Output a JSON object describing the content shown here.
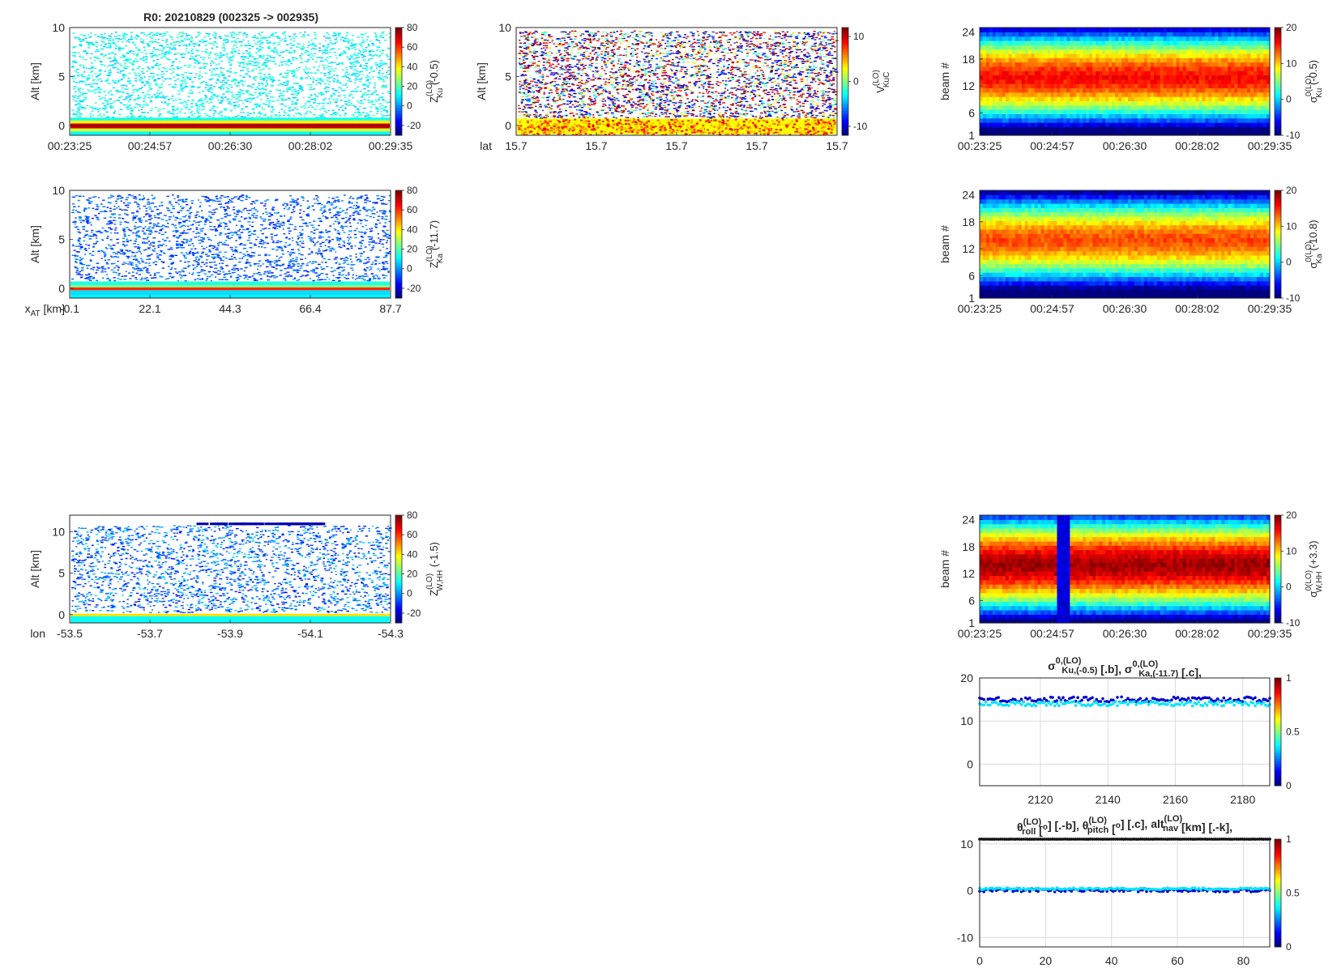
{
  "figure": {
    "title": "R0:  20210829 (002325 -> 002935)"
  },
  "chart_data": [
    {
      "id": "zku",
      "type": "heatmap",
      "ylabel": "Alt [km]",
      "ylim": [
        -1,
        10
      ],
      "yticks": [
        "0",
        "5",
        "10"
      ],
      "xticks": [
        "00:23:25",
        "00:24:57",
        "00:26:30",
        "00:28:02",
        "00:29:35"
      ],
      "colorbar": {
        "ticks": [
          "-20",
          "0",
          "20",
          "40",
          "60",
          "80"
        ],
        "range": [
          -30,
          80
        ],
        "label_main": "Z",
        "label_sup": "(LO)",
        "label_sub": "Ku",
        "label_suffix": " (-0.5)"
      },
      "content": "sparse echoes ~10-20 dBZ, strong surface return ~60-80 dBZ near 0 km"
    },
    {
      "id": "vkuc",
      "type": "heatmap",
      "ylabel": "Alt [km]",
      "ylim": [
        -1,
        10
      ],
      "yticks": [
        "0",
        "5",
        "10"
      ],
      "xaxis_prefix": "lat",
      "xticks": [
        "15.7",
        "15.7",
        "15.7",
        "15.7",
        "15.7"
      ],
      "colorbar": {
        "ticks": [
          "-10",
          "0",
          "10"
        ],
        "range": [
          -12,
          12
        ],
        "label_main": "V",
        "label_sup": "(LO)",
        "label_sub": "KuC",
        "label_suffix": ""
      },
      "content": "noisy velocity field from -12 to 12 m/s, surface near 0 km"
    },
    {
      "id": "sku",
      "type": "heatmap",
      "ylabel": "beam #",
      "ylim": [
        1,
        25
      ],
      "yticks": [
        "1",
        "6",
        "12",
        "18",
        "24"
      ],
      "xticks": [
        "00:23:25",
        "00:24:57",
        "00:26:30",
        "00:28:02",
        "00:29:35"
      ],
      "colorbar": {
        "ticks": [
          "-10",
          "0",
          "10",
          "20"
        ],
        "range": [
          -10,
          20
        ],
        "label_main": "σ",
        "label_sup": "0(LO)",
        "label_sub": "Ku",
        "label_suffix": " (-0.5)"
      },
      "content": "peak ~15 dB at nadir beams 12-14, falling to -10 dB at outer beams"
    },
    {
      "id": "zka",
      "type": "heatmap",
      "ylabel": "Alt [km]",
      "ylim": [
        -1,
        10
      ],
      "yticks": [
        "0",
        "5",
        "10"
      ],
      "xaxis_prefix": "x",
      "xaxis_prefix_sub": "AT",
      "xaxis_prefix_suffix": " [km]",
      "xticks": [
        "-0.1",
        "22.1",
        "44.3",
        "66.4",
        "87.7"
      ],
      "colorbar": {
        "ticks": [
          "-20",
          "0",
          "20",
          "40",
          "60",
          "80"
        ],
        "range": [
          -30,
          80
        ],
        "label_main": "Z",
        "label_sup": "(LO)",
        "label_sub": "Ka",
        "label_suffix": " (-11.7)"
      },
      "content": "sparse weak echoes ~-10 dBZ, surface return ~40-80 dBZ near 0 km"
    },
    {
      "id": "ska",
      "type": "heatmap",
      "ylabel": "beam #",
      "ylim": [
        1,
        25
      ],
      "yticks": [
        "1",
        "6",
        "12",
        "18",
        "24"
      ],
      "xticks": [
        "00:23:25",
        "00:24:57",
        "00:26:30",
        "00:28:02",
        "00:29:35"
      ],
      "colorbar": {
        "ticks": [
          "-10",
          "0",
          "10",
          "20"
        ],
        "range": [
          -10,
          20
        ],
        "label_main": "σ",
        "label_sup": "0(LO)",
        "label_sub": "Ka",
        "label_suffix": " (-10.8)"
      },
      "content": "peak ~14 dB at nadir beams, falling to -10 dB at outer beams"
    },
    {
      "id": "zw",
      "type": "heatmap",
      "ylabel": "Alt [km]",
      "ylim": [
        -1,
        12
      ],
      "yticks": [
        "0",
        "5",
        "10"
      ],
      "xaxis_prefix": "lon",
      "xticks": [
        "-53.5",
        "-53.7",
        "-53.9",
        "-54.1",
        "-54.3"
      ],
      "colorbar": {
        "ticks": [
          "-20",
          "0",
          "20",
          "40",
          "60",
          "80"
        ],
        "range": [
          -30,
          80
        ],
        "label_main": "Z",
        "label_sup": "(LO)",
        "label_sub": "W,HH",
        "label_suffix": "  (-1.5)"
      },
      "content": "sparse echoes ~-10 to 10 dBZ, surface ~40 dBZ at 0 km, blue band near 11 km"
    },
    {
      "id": "sw",
      "type": "heatmap",
      "ylabel": "beam #",
      "ylim": [
        1,
        25
      ],
      "yticks": [
        "1",
        "6",
        "12",
        "18",
        "24"
      ],
      "xticks": [
        "00:23:25",
        "00:24:57",
        "00:26:30",
        "00:28:02",
        "00:29:35"
      ],
      "colorbar": {
        "ticks": [
          "-10",
          "0",
          "10",
          "20"
        ],
        "range": [
          -10,
          20
        ],
        "label_main": "σ",
        "label_sup": "0(LO)",
        "label_sub": "W,HH",
        "label_suffix": " (+3.3)"
      },
      "content": "peak ~18 dB at nadir beams, gap ~-8 dB near 00:25:00"
    },
    {
      "id": "sigma_line",
      "type": "scatter",
      "title_parts": [
        {
          "t": "σ",
          "sty": "n"
        },
        {
          "t": "0,(LO)",
          "sty": "sup"
        },
        {
          "t": "Ku,(-0.5)",
          "sty": "sub"
        },
        {
          "t": " [.b],  ",
          "sty": "n"
        },
        {
          "t": "σ",
          "sty": "n"
        },
        {
          "t": "0,(LO)",
          "sty": "sup"
        },
        {
          "t": "Ka,(-11.7)",
          "sty": "sub"
        },
        {
          "t": " [.c],",
          "sty": "n"
        }
      ],
      "xlim": [
        2102,
        2188
      ],
      "ylim": [
        -5,
        20
      ],
      "xticks": [
        "2120",
        "2140",
        "2160",
        "2180"
      ],
      "xtick_values": [
        2120,
        2140,
        2160,
        2180
      ],
      "yticks": [
        "0",
        "10",
        "20"
      ],
      "ytick_values": [
        0,
        10,
        20
      ],
      "series": [
        {
          "name": "sigma0 Ku",
          "color": "#0000cc",
          "mean": 15.0,
          "spread": 0.6
        },
        {
          "name": "sigma0 Ka",
          "color": "#00e5ff",
          "mean": 14.0,
          "spread": 0.5
        }
      ],
      "colorbar": {
        "ticks": [
          "0",
          "0.5",
          "1"
        ],
        "range": [
          0,
          1
        ]
      }
    },
    {
      "id": "att_line",
      "type": "scatter",
      "title_parts": [
        {
          "t": "θ",
          "sty": "n"
        },
        {
          "t": "(LO)",
          "sty": "sup"
        },
        {
          "t": "roll",
          "sty": "sub"
        },
        {
          "t": " [",
          "sty": "n"
        },
        {
          "t": "o",
          "sty": "sup2"
        },
        {
          "t": "] [.-b],  ",
          "sty": "n"
        },
        {
          "t": "θ",
          "sty": "n"
        },
        {
          "t": "(LO)",
          "sty": "sup"
        },
        {
          "t": "pitch",
          "sty": "sub"
        },
        {
          "t": " [",
          "sty": "n"
        },
        {
          "t": "o",
          "sty": "sup2"
        },
        {
          "t": "] [.c],  alt",
          "sty": "n"
        },
        {
          "t": "(LO)",
          "sty": "sup"
        },
        {
          "t": "nav",
          "sty": "sub"
        },
        {
          "t": " [km] [.-k],",
          "sty": "n"
        }
      ],
      "xlim": [
        0,
        88
      ],
      "ylim": [
        -12,
        11
      ],
      "xticks": [
        "0",
        "20",
        "40",
        "60",
        "80"
      ],
      "xtick_values": [
        0,
        20,
        40,
        60,
        80
      ],
      "yticks": [
        "-10",
        "0",
        "10"
      ],
      "ytick_values": [
        -10,
        0,
        10
      ],
      "series": [
        {
          "name": "roll",
          "color": "#0000cc",
          "mean": 0.1,
          "spread": 0.35
        },
        {
          "name": "pitch",
          "color": "#00e5ff",
          "mean": 0.4,
          "spread": 0.2
        },
        {
          "name": "alt nav",
          "color": "#000000",
          "mean": 11.0,
          "spread": 0.02
        }
      ],
      "colorbar": {
        "ticks": [
          "0",
          "0.5",
          "1"
        ],
        "range": [
          0,
          1
        ]
      }
    }
  ]
}
